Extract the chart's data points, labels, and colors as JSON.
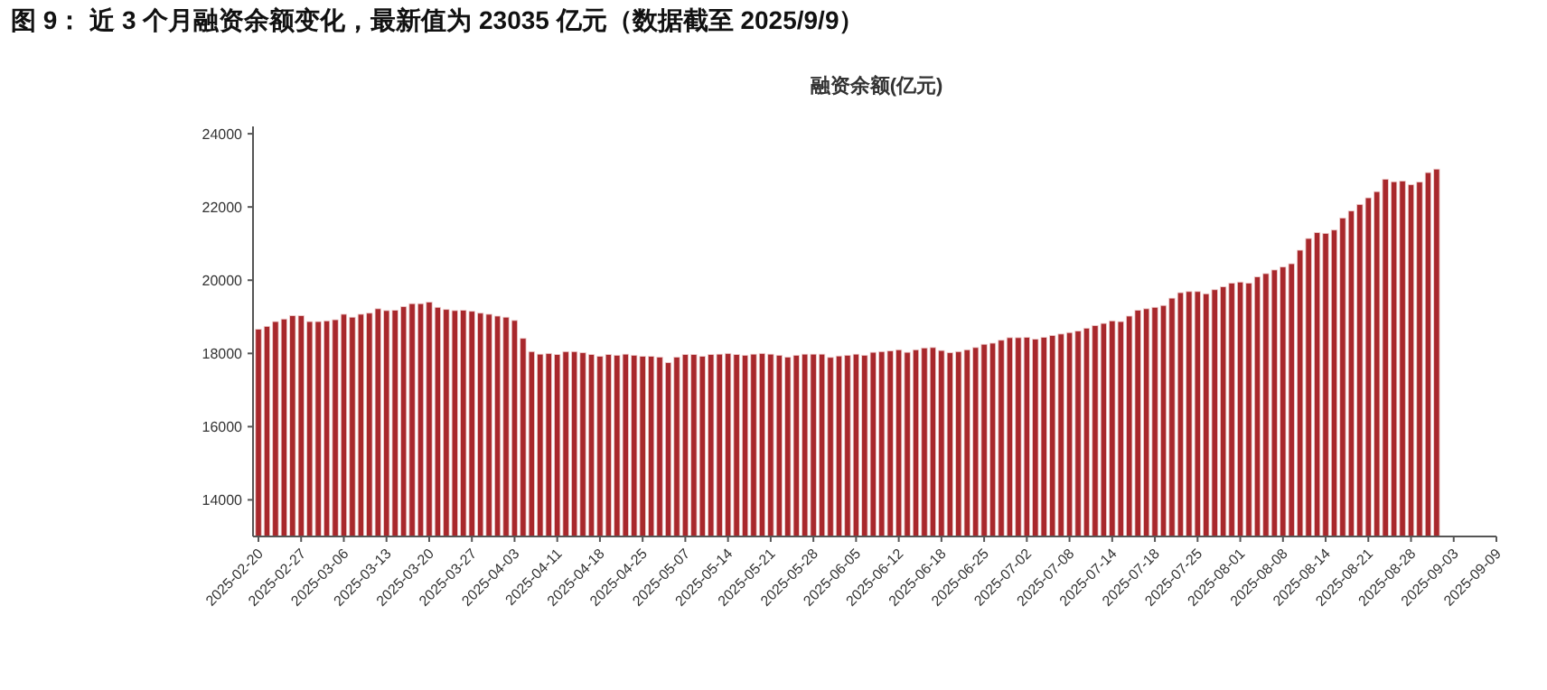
{
  "chart_data": {
    "type": "bar",
    "title": "图 9：  近 3 个月融资余额变化，最新值为 23035 亿元（数据截至 2025/9/9）",
    "subtitle": "融资余额(亿元)",
    "categories": [
      "2025-02-20",
      null,
      null,
      null,
      null,
      "2025-02-27",
      null,
      null,
      null,
      null,
      "2025-03-06",
      null,
      null,
      null,
      null,
      "2025-03-13",
      null,
      null,
      null,
      null,
      "2025-03-20",
      null,
      null,
      null,
      null,
      "2025-03-27",
      null,
      null,
      null,
      null,
      "2025-04-03",
      null,
      null,
      null,
      null,
      "2025-04-11",
      null,
      null,
      null,
      null,
      "2025-04-18",
      null,
      null,
      null,
      null,
      "2025-04-25",
      null,
      null,
      null,
      null,
      "2025-05-07",
      null,
      null,
      null,
      null,
      "2025-05-14",
      null,
      null,
      null,
      null,
      "2025-05-21",
      null,
      null,
      null,
      null,
      "2025-05-28",
      null,
      null,
      null,
      null,
      "2025-06-05",
      null,
      null,
      null,
      null,
      "2025-06-12",
      null,
      null,
      null,
      null,
      "2025-06-18",
      null,
      null,
      null,
      null,
      "2025-06-25",
      null,
      null,
      null,
      null,
      "2025-07-02",
      null,
      null,
      null,
      null,
      "2025-07-08",
      null,
      null,
      null,
      null,
      "2025-07-14",
      null,
      null,
      null,
      null,
      "2025-07-18",
      null,
      null,
      null,
      null,
      "2025-07-25",
      null,
      null,
      null,
      null,
      "2025-08-01",
      null,
      null,
      null,
      null,
      "2025-08-08",
      null,
      null,
      null,
      null,
      "2025-08-14",
      null,
      null,
      null,
      null,
      "2025-08-21",
      null,
      null,
      null,
      null,
      "2025-08-28",
      null,
      null,
      null,
      null,
      "2025-09-03",
      null,
      null,
      null,
      null,
      "2025-09-09"
    ],
    "values": [
      18660,
      18740,
      18870,
      18940,
      19030,
      19030,
      18870,
      18870,
      18890,
      18920,
      19070,
      18990,
      19070,
      19100,
      19220,
      19170,
      19180,
      19280,
      19360,
      19360,
      19400,
      19260,
      19200,
      19170,
      19180,
      19150,
      19100,
      19070,
      19020,
      18990,
      18900,
      18410,
      18050,
      17980,
      18000,
      17970,
      18050,
      18050,
      18020,
      17970,
      17920,
      17970,
      17950,
      17980,
      17950,
      17920,
      17920,
      17900,
      17750,
      17900,
      17970,
      17970,
      17920,
      17970,
      17980,
      18000,
      17970,
      17950,
      17980,
      18000,
      17980,
      17950,
      17900,
      17950,
      17980,
      17980,
      17980,
      17890,
      17930,
      17950,
      17980,
      17950,
      18030,
      18050,
      18070,
      18100,
      18030,
      18100,
      18150,
      18160,
      18080,
      18020,
      18050,
      18100,
      18160,
      18250,
      18280,
      18360,
      18430,
      18430,
      18440,
      18390,
      18440,
      18490,
      18530,
      18570,
      18610,
      18690,
      18760,
      18820,
      18890,
      18870,
      19020,
      19180,
      19220,
      19260,
      19310,
      19510,
      19660,
      19690,
      19690,
      19630,
      19740,
      19820,
      19920,
      19950,
      19920,
      20090,
      20180,
      20280,
      20360,
      20450,
      20820,
      21140,
      21300,
      21280,
      21370,
      21700,
      21890,
      22070,
      22250,
      22420,
      22760,
      22690,
      22710,
      22610,
      22680,
      22940,
      23035,
      null,
      null,
      null,
      null,
      null,
      null,
      null
    ],
    "color": "#a8282c",
    "ylim": [
      13000,
      24200
    ],
    "yticks": [
      14000,
      16000,
      18000,
      20000,
      22000,
      24000
    ],
    "grid": false
  }
}
